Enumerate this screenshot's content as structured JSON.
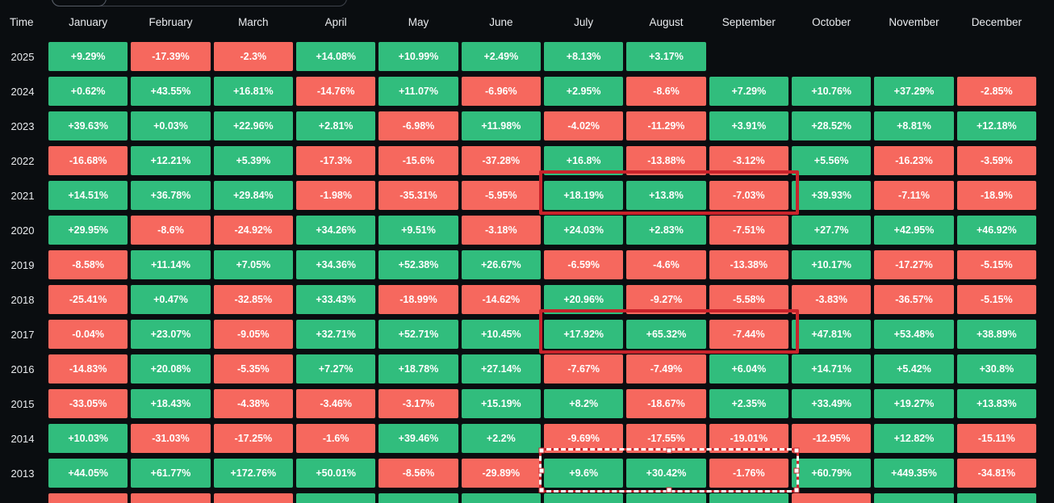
{
  "chart_data": {
    "type": "heatmap",
    "row_header": "Time",
    "columns": [
      "January",
      "February",
      "March",
      "April",
      "May",
      "June",
      "July",
      "August",
      "September",
      "October",
      "November",
      "December"
    ],
    "rows": [
      {
        "label": "2025",
        "values": [
          9.29,
          -17.39,
          -2.3,
          14.08,
          10.99,
          2.49,
          8.13,
          3.17
        ]
      },
      {
        "label": "2024",
        "values": [
          0.62,
          43.55,
          16.81,
          -14.76,
          11.07,
          -6.96,
          2.95,
          -8.6,
          7.29,
          10.76,
          37.29,
          -2.85
        ]
      },
      {
        "label": "2023",
        "values": [
          39.63,
          0.03,
          22.96,
          2.81,
          -6.98,
          11.98,
          -4.02,
          -11.29,
          3.91,
          28.52,
          8.81,
          12.18
        ]
      },
      {
        "label": "2022",
        "values": [
          -16.68,
          12.21,
          5.39,
          -17.3,
          -15.6,
          -37.28,
          16.8,
          -13.88,
          -3.12,
          5.56,
          -16.23,
          -3.59
        ]
      },
      {
        "label": "2021",
        "values": [
          14.51,
          36.78,
          29.84,
          -1.98,
          -35.31,
          -5.95,
          18.19,
          13.8,
          -7.03,
          39.93,
          -7.11,
          -18.9
        ]
      },
      {
        "label": "2020",
        "values": [
          29.95,
          -8.6,
          -24.92,
          34.26,
          9.51,
          -3.18,
          24.03,
          2.83,
          -7.51,
          27.7,
          42.95,
          46.92
        ]
      },
      {
        "label": "2019",
        "values": [
          -8.58,
          11.14,
          7.05,
          34.36,
          52.38,
          26.67,
          -6.59,
          -4.6,
          -13.38,
          10.17,
          -17.27,
          -5.15
        ]
      },
      {
        "label": "2018",
        "values": [
          -25.41,
          0.47,
          -32.85,
          33.43,
          -18.99,
          -14.62,
          20.96,
          -9.27,
          -5.58,
          -3.83,
          -36.57,
          -5.15
        ]
      },
      {
        "label": "2017",
        "values": [
          -0.04,
          23.07,
          -9.05,
          32.71,
          52.71,
          10.45,
          17.92,
          65.32,
          -7.44,
          47.81,
          53.48,
          38.89
        ]
      },
      {
        "label": "2016",
        "values": [
          -14.83,
          20.08,
          -5.35,
          7.27,
          18.78,
          27.14,
          -7.67,
          -7.49,
          6.04,
          14.71,
          5.42,
          30.8
        ]
      },
      {
        "label": "2015",
        "values": [
          -33.05,
          18.43,
          -4.38,
          -3.46,
          -3.17,
          15.19,
          8.2,
          -18.67,
          2.35,
          33.49,
          19.27,
          13.83
        ]
      },
      {
        "label": "2014",
        "values": [
          10.03,
          -31.03,
          -17.25,
          -1.6,
          39.46,
          2.2,
          -9.69,
          -17.55,
          -19.01,
          -12.95,
          12.82,
          -15.11
        ]
      },
      {
        "label": "2013",
        "values": [
          44.05,
          61.77,
          172.76,
          50.01,
          -8.56,
          -29.89,
          9.6,
          30.42,
          -1.76,
          60.79,
          449.35,
          -34.81
        ]
      }
    ],
    "partial_bottom_row": {
      "label": "",
      "cell_signs": [
        "neg",
        "neg",
        "neg",
        "pos",
        "pos",
        "pos",
        "pos",
        "pos",
        "pos",
        "neg",
        "pos",
        "pos"
      ]
    },
    "value_format": "signed_percent",
    "legend_position": "none",
    "grid": false
  },
  "annotations": {
    "color": "#c9232b",
    "boxes": [
      {
        "row": "2021",
        "from": "July",
        "to": "September",
        "style": "solid"
      },
      {
        "row": "2017",
        "from": "July",
        "to": "September",
        "style": "solid"
      },
      {
        "row": "2013",
        "from": "July",
        "to": "September",
        "style": "dashed-selected"
      }
    ]
  },
  "page": {
    "background": "#0a0d10",
    "header_text_color": "#e9ebee",
    "cell_text_color": "#ffffff",
    "positive_color": "#31bd7d",
    "negative_color": "#f6685e"
  }
}
